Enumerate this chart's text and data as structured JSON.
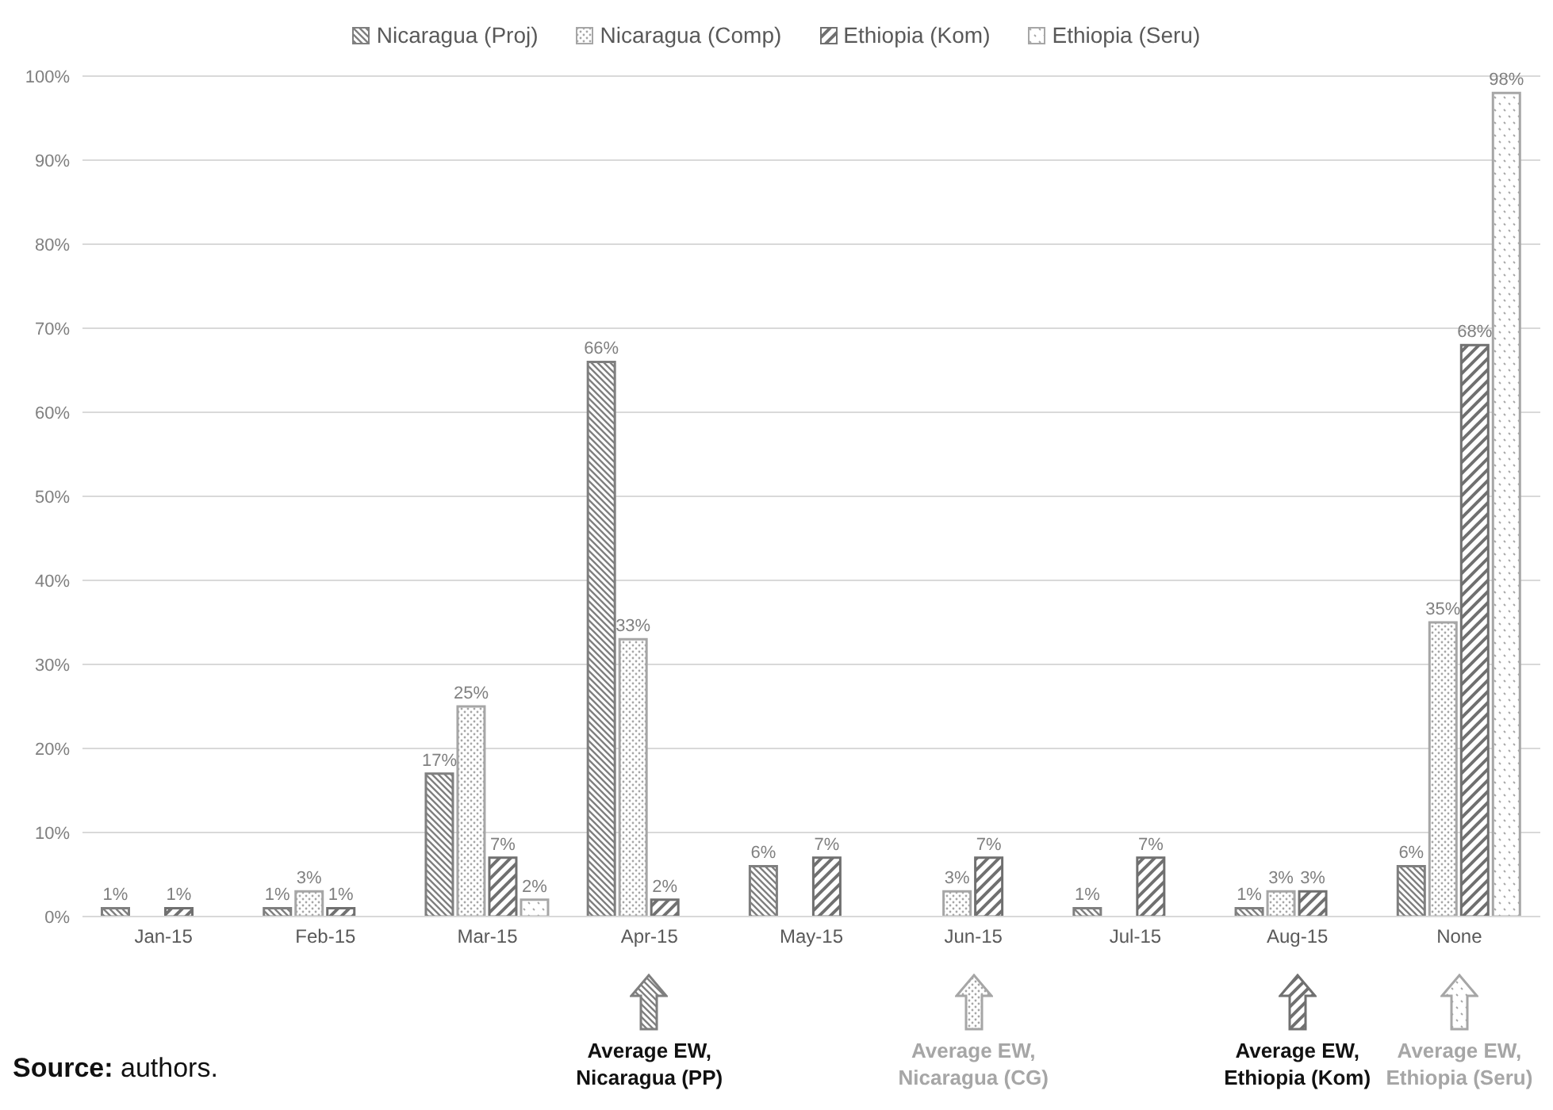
{
  "chart_data": {
    "type": "bar",
    "categories": [
      "Jan-15",
      "Feb-15",
      "Mar-15",
      "Apr-15",
      "May-15",
      "Jun-15",
      "Jul-15",
      "Aug-15",
      "None"
    ],
    "series": [
      {
        "name": "Nicaragua (Proj)",
        "color": "#7f7f7f",
        "values": [
          1,
          1,
          17,
          66,
          6,
          null,
          1,
          1,
          6
        ],
        "value_labels": [
          "1%",
          "1%",
          "17%",
          "66%",
          "6%",
          null,
          "1%",
          "1%",
          "6%"
        ]
      },
      {
        "name": "Nicaragua (Comp)",
        "color": "#a6a6a6",
        "values": [
          null,
          3,
          25,
          33,
          null,
          3,
          null,
          3,
          35
        ],
        "value_labels": [
          null,
          "3%",
          "25%",
          "33%",
          null,
          "3%",
          null,
          "3%",
          "35%"
        ]
      },
      {
        "name": "Ethiopia (Kom)",
        "color": "#707070",
        "values": [
          1,
          1,
          7,
          2,
          7,
          7,
          7,
          3,
          68
        ],
        "value_labels": [
          "1%",
          "1%",
          "7%",
          "2%",
          "7%",
          "7%",
          "7%",
          "3%",
          "68%"
        ]
      },
      {
        "name": "Ethiopia (Seru)",
        "color": "#a6a6a6",
        "values": [
          null,
          null,
          2,
          null,
          null,
          null,
          null,
          null,
          98
        ],
        "value_labels": [
          null,
          null,
          "2%",
          null,
          null,
          null,
          null,
          null,
          "98%"
        ]
      }
    ],
    "ylim": [
      0,
      100
    ],
    "yticks": [
      {
        "value": 0,
        "label": "0%"
      },
      {
        "value": 10,
        "label": "10%"
      },
      {
        "value": 20,
        "label": "20%"
      },
      {
        "value": 30,
        "label": "30%"
      },
      {
        "value": 40,
        "label": "40%"
      },
      {
        "value": 50,
        "label": "50%"
      },
      {
        "value": 60,
        "label": "60%"
      },
      {
        "value": 70,
        "label": "70%"
      },
      {
        "value": 80,
        "label": "80%"
      },
      {
        "value": 90,
        "label": "90%"
      },
      {
        "value": 100,
        "label": "100%"
      }
    ],
    "grid": "y",
    "legend": "top",
    "annotations": [
      "Average EW,\nNicaragua (PP)",
      "Average EW,\nNicaragua (CG)",
      "Average EW,\nEthiopia (Kom)",
      "Average EW,\nEthiopia (Seru)",
      "Source: authors."
    ]
  }
}
